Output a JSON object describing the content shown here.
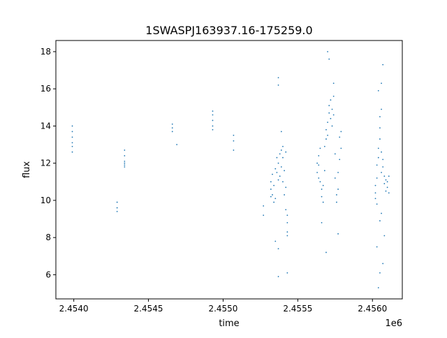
{
  "chart_data": {
    "type": "scatter",
    "title": "1SWASPJ163937.16-175259.0",
    "xlabel": "time",
    "ylabel": "flux",
    "x_offset_label": "1e6",
    "xlim": [
      2.45388,
      2.4562
    ],
    "ylim": [
      4.7,
      18.6
    ],
    "x_ticks": [
      2.454,
      2.4545,
      2.455,
      2.4555,
      2.456
    ],
    "x_tick_labels": [
      "2.4540",
      "2.4545",
      "2.4550",
      "2.4555",
      "2.4560"
    ],
    "y_ticks": [
      6,
      8,
      10,
      12,
      14,
      16,
      18
    ],
    "y_tick_labels": [
      "6",
      "8",
      "10",
      "12",
      "14",
      "16",
      "18"
    ],
    "grid": false,
    "color": "#1f77b4",
    "series": [
      {
        "points": [
          [
            2.45399,
            13.1
          ],
          [
            2.45399,
            13.4
          ],
          [
            2.45399,
            13.7
          ],
          [
            2.45399,
            14.0
          ],
          [
            2.45399,
            12.9
          ],
          [
            2.45399,
            12.6
          ],
          [
            2.45429,
            9.6
          ],
          [
            2.45429,
            9.9
          ],
          [
            2.45429,
            9.4
          ],
          [
            2.45434,
            11.8
          ],
          [
            2.45434,
            12.1
          ],
          [
            2.45434,
            12.4
          ],
          [
            2.45434,
            12.7
          ],
          [
            2.45434,
            12.0
          ],
          [
            2.45434,
            11.9
          ],
          [
            2.45466,
            13.7
          ],
          [
            2.45466,
            13.9
          ],
          [
            2.45466,
            14.1
          ],
          [
            2.45469,
            13.0
          ],
          [
            2.45493,
            14.0
          ],
          [
            2.45493,
            14.3
          ],
          [
            2.45493,
            14.6
          ],
          [
            2.45493,
            13.8
          ],
          [
            2.45493,
            14.8
          ],
          [
            2.45507,
            13.5
          ],
          [
            2.45507,
            13.2
          ],
          [
            2.45507,
            12.7
          ],
          [
            2.45527,
            9.7
          ],
          [
            2.45527,
            9.2
          ],
          [
            2.45532,
            10.2
          ],
          [
            2.45532,
            10.6
          ],
          [
            2.45532,
            11.0
          ],
          [
            2.45533,
            10.3
          ],
          [
            2.45533,
            11.4
          ],
          [
            2.45534,
            9.9
          ],
          [
            2.45534,
            10.8
          ],
          [
            2.45535,
            10.1
          ],
          [
            2.45535,
            11.7
          ],
          [
            2.45535,
            7.8
          ],
          [
            2.45536,
            11.5
          ],
          [
            2.45536,
            12.3
          ],
          [
            2.45537,
            12.0
          ],
          [
            2.45537,
            11.1
          ],
          [
            2.45537,
            16.6
          ],
          [
            2.45537,
            16.2
          ],
          [
            2.45538,
            12.5
          ],
          [
            2.45538,
            11.3
          ],
          [
            2.45539,
            12.7
          ],
          [
            2.45539,
            11.8
          ],
          [
            2.45539,
            13.7
          ],
          [
            2.4554,
            12.3
          ],
          [
            2.4554,
            11.0
          ],
          [
            2.4554,
            12.9
          ],
          [
            2.45541,
            11.6
          ],
          [
            2.45541,
            10.3
          ],
          [
            2.45542,
            10.7
          ],
          [
            2.45542,
            9.5
          ],
          [
            2.45542,
            12.6
          ],
          [
            2.45543,
            9.2
          ],
          [
            2.45543,
            8.8
          ],
          [
            2.45543,
            8.3
          ],
          [
            2.45543,
            8.1
          ],
          [
            2.45543,
            6.1
          ],
          [
            2.45537,
            5.9
          ],
          [
            2.45537,
            7.4
          ],
          [
            2.45563,
            11.5
          ],
          [
            2.45563,
            12.0
          ],
          [
            2.45564,
            11.2
          ],
          [
            2.45564,
            12.4
          ],
          [
            2.45564,
            11.9
          ],
          [
            2.45565,
            12.8
          ],
          [
            2.45565,
            11.0
          ],
          [
            2.45566,
            10.6
          ],
          [
            2.45566,
            10.2
          ],
          [
            2.45567,
            9.9
          ],
          [
            2.45567,
            10.8
          ],
          [
            2.45568,
            11.6
          ],
          [
            2.45568,
            12.9
          ],
          [
            2.45569,
            13.3
          ],
          [
            2.45569,
            13.8
          ],
          [
            2.4557,
            14.2
          ],
          [
            2.4557,
            13.5
          ],
          [
            2.45571,
            14.7
          ],
          [
            2.45571,
            15.1
          ],
          [
            2.45572,
            14.4
          ],
          [
            2.45572,
            15.4
          ],
          [
            2.45573,
            14.9
          ],
          [
            2.45573,
            14.0
          ],
          [
            2.45574,
            15.6
          ],
          [
            2.45574,
            14.6
          ],
          [
            2.45575,
            12.5
          ],
          [
            2.45575,
            11.2
          ],
          [
            2.45576,
            10.3
          ],
          [
            2.45576,
            9.9
          ],
          [
            2.45577,
            10.6
          ],
          [
            2.45577,
            11.5
          ],
          [
            2.45578,
            12.2
          ],
          [
            2.45578,
            13.4
          ],
          [
            2.45579,
            13.7
          ],
          [
            2.45579,
            12.8
          ],
          [
            2.4557,
            18.0
          ],
          [
            2.45571,
            17.6
          ],
          [
            2.45569,
            7.2
          ],
          [
            2.45577,
            8.2
          ],
          [
            2.45566,
            8.8
          ],
          [
            2.45574,
            16.3
          ],
          [
            2.45602,
            10.4
          ],
          [
            2.45602,
            10.8
          ],
          [
            2.45602,
            10.1
          ],
          [
            2.45603,
            11.2
          ],
          [
            2.45603,
            9.8
          ],
          [
            2.45603,
            11.9
          ],
          [
            2.45604,
            12.3
          ],
          [
            2.45604,
            12.8
          ],
          [
            2.45605,
            13.3
          ],
          [
            2.45605,
            13.9
          ],
          [
            2.45605,
            14.5
          ],
          [
            2.45606,
            12.6
          ],
          [
            2.45606,
            11.5
          ],
          [
            2.45606,
            14.9
          ],
          [
            2.45607,
            12.2
          ],
          [
            2.45607,
            11.8
          ],
          [
            2.45608,
            11.3
          ],
          [
            2.45608,
            10.9
          ],
          [
            2.45609,
            11.1
          ],
          [
            2.45609,
            10.5
          ],
          [
            2.4561,
            10.7
          ],
          [
            2.4561,
            11.0
          ],
          [
            2.45611,
            10.4
          ],
          [
            2.45611,
            11.3
          ],
          [
            2.45604,
            15.9
          ],
          [
            2.45607,
            17.3
          ],
          [
            2.45606,
            16.3
          ],
          [
            2.45604,
            5.3
          ],
          [
            2.45605,
            6.1
          ],
          [
            2.45607,
            6.6
          ],
          [
            2.45603,
            7.5
          ],
          [
            2.45608,
            8.1
          ],
          [
            2.45605,
            8.9
          ],
          [
            2.45606,
            9.3
          ]
        ]
      }
    ]
  }
}
